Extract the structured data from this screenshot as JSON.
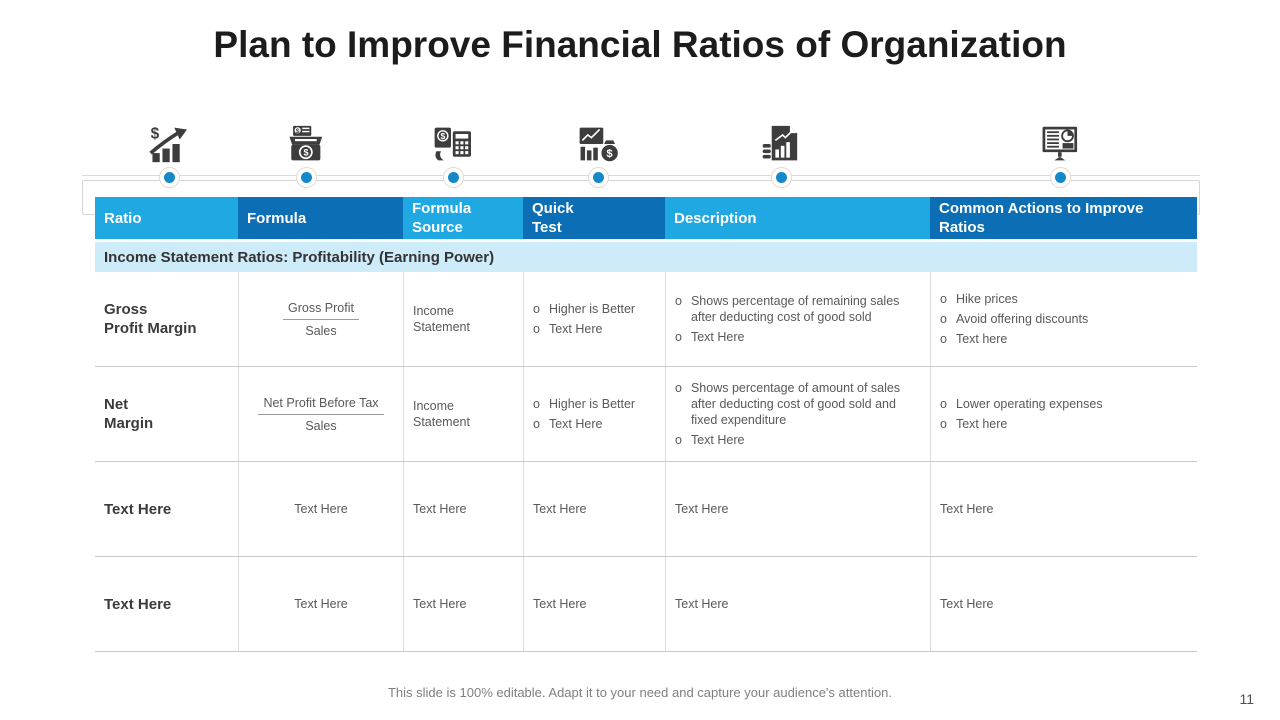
{
  "slide": {
    "title": "Plan to Improve Financial Ratios of Organization",
    "footer": "This slide is 100% editable. Adapt it to your need and capture your audience's attention.",
    "page_number": "11"
  },
  "colors": {
    "header_light": "#1FA8E2",
    "header_dark": "#0C6EB5",
    "section_band": "#CDEBF9",
    "timeline_dot": "#1588C9",
    "icon_gray": "#3d3d3d"
  },
  "icons": [
    {
      "name": "money-growth-icon"
    },
    {
      "name": "cash-register-icon"
    },
    {
      "name": "calculator-payment-icon"
    },
    {
      "name": "financial-analysis-icon"
    },
    {
      "name": "financial-report-icon"
    },
    {
      "name": "presentation-chart-icon"
    }
  ],
  "table": {
    "headers": [
      "Ratio",
      "Formula",
      "Formula\nSource",
      "Quick\nTest",
      "Description",
      "Common Actions to Improve\nRatios"
    ],
    "section": "Income Statement Ratios: Profitability (Earning Power)",
    "rows": [
      {
        "ratio": "Gross\nProfit Margin",
        "formula_numerator": "Gross Profit",
        "formula_denominator": "Sales",
        "source": "Income\nStatement",
        "quick_test": [
          "Higher is Better",
          "Text Here"
        ],
        "description": [
          "Shows percentage of remaining sales after deducting cost of good sold",
          "Text Here"
        ],
        "actions": [
          "Hike prices",
          "Avoid offering discounts",
          "Text here"
        ]
      },
      {
        "ratio": "Net\nMargin",
        "formula_numerator": "Net Profit Before Tax",
        "formula_denominator": "Sales",
        "source": "Income\nStatement",
        "quick_test": [
          "Higher is Better",
          "Text Here"
        ],
        "description": [
          "Shows percentage of amount of sales after deducting cost of good sold and fixed expenditure",
          "Text Here"
        ],
        "actions": [
          "Lower operating expenses",
          "Text here"
        ]
      },
      {
        "ratio": "Text Here",
        "formula_text": "Text Here",
        "source": "Text Here",
        "quick_test_text": "Text Here",
        "description_text": "Text Here",
        "actions_text": "Text Here"
      },
      {
        "ratio": "Text Here",
        "formula_text": "Text Here",
        "source": "Text Here",
        "quick_test_text": "Text Here",
        "description_text": "Text Here",
        "actions_text": "Text Here"
      }
    ]
  }
}
